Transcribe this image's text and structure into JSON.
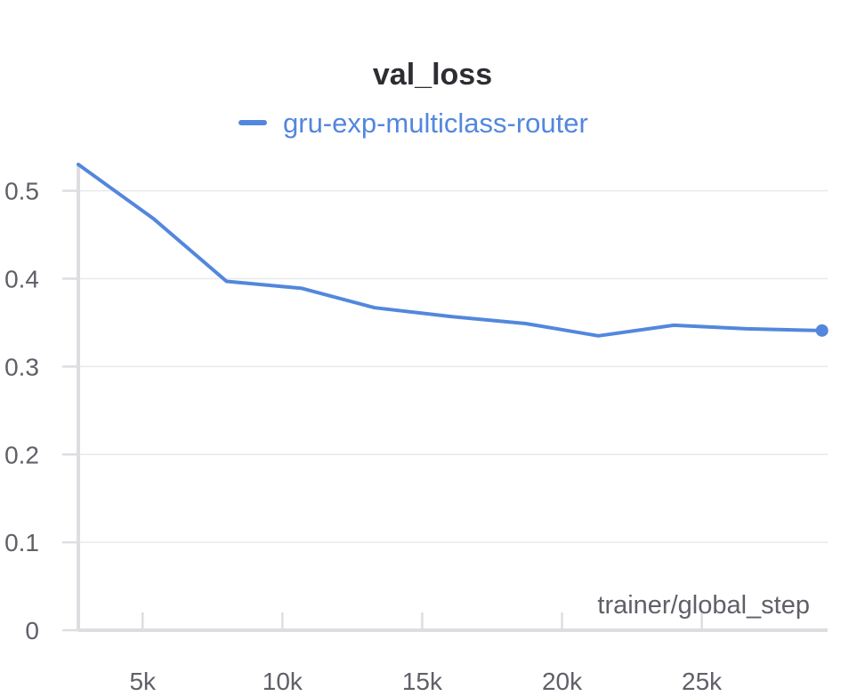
{
  "chart_data": {
    "type": "line",
    "title": "val_loss",
    "xlabel": "trainer/global_step",
    "ylabel": "",
    "xlim": [
      2700,
      29500
    ],
    "ylim": [
      0,
      0.53
    ],
    "x_ticks": [
      5000,
      10000,
      15000,
      20000,
      25000
    ],
    "x_tick_labels": [
      "5k",
      "10k",
      "15k",
      "20k",
      "25k"
    ],
    "y_ticks": [
      0,
      0.1,
      0.2,
      0.3,
      0.4,
      0.5
    ],
    "y_tick_labels": [
      "0",
      "0.1",
      "0.2",
      "0.3",
      "0.4",
      "0.5"
    ],
    "grid": true,
    "legend_position": "top-center",
    "series": [
      {
        "name": "gru-exp-multiclass-router",
        "color": "#5387dd",
        "x": [
          2700,
          5400,
          8000,
          10700,
          13300,
          16000,
          18700,
          21300,
          24000,
          26600,
          29300
        ],
        "y": [
          0.53,
          0.468,
          0.397,
          0.389,
          0.367,
          0.357,
          0.349,
          0.335,
          0.347,
          0.343,
          0.341
        ]
      }
    ]
  }
}
